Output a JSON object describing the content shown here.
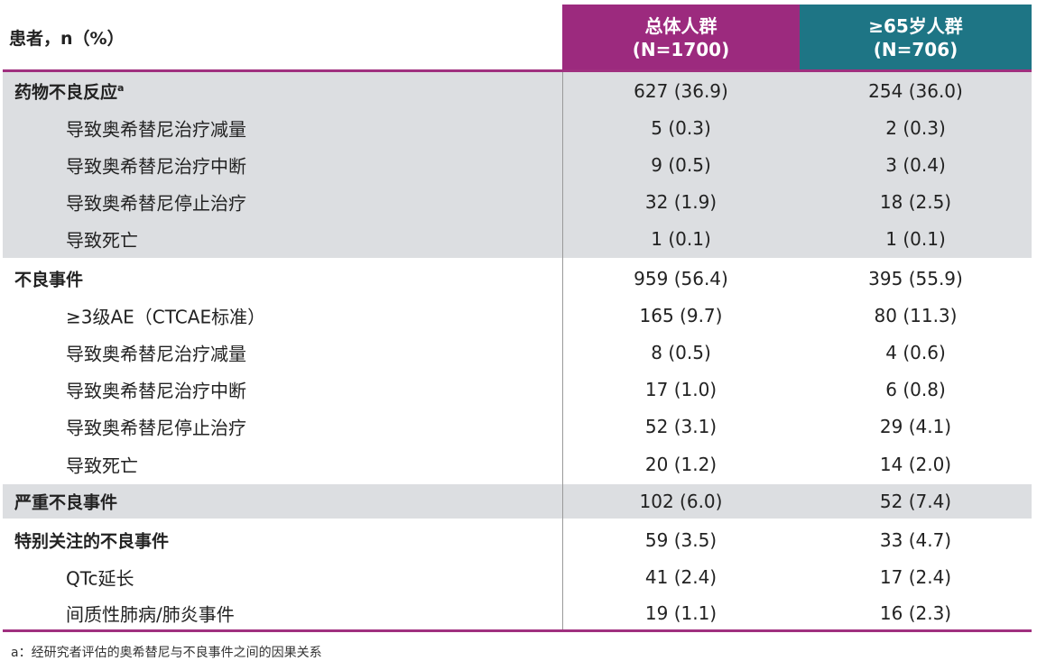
{
  "header": {
    "label": "患者，n（%）",
    "col1_title": "总体人群",
    "col1_n": "(N=1700)",
    "col2_title": "≥65岁人群",
    "col2_n": "(N=706)"
  },
  "colors": {
    "col1": "#9c2a7e",
    "col2": "#1e7585",
    "shade": "#dcdee1"
  },
  "groups": [
    {
      "shaded": true,
      "rows": [
        {
          "label": "药物不良反应",
          "sup": "a",
          "main": true,
          "v1": "627 (36.9)",
          "v2": "254 (36.0)"
        },
        {
          "label": "导致奥希替尼治疗减量",
          "v1": "5 (0.3)",
          "v2": "2 (0.3)"
        },
        {
          "label": "导致奥希替尼治疗中断",
          "v1": "9 (0.5)",
          "v2": "3 (0.4)"
        },
        {
          "label": "导致奥希替尼停止治疗",
          "v1": "32 (1.9)",
          "v2": "18 (2.5)"
        },
        {
          "label": "导致死亡",
          "v1": "1 (0.1)",
          "v2": "1 (0.1)"
        }
      ]
    },
    {
      "shaded": false,
      "rows": [
        {
          "label": "不良事件",
          "main": true,
          "v1": "959 (56.4)",
          "v2": "395 (55.9)"
        },
        {
          "label": "≥3级AE（CTCAE标准）",
          "v1": "165 (9.7)",
          "v2": "80 (11.3)"
        },
        {
          "label": "导致奥希替尼治疗减量",
          "v1": "8 (0.5)",
          "v2": "4 (0.6)"
        },
        {
          "label": "导致奥希替尼治疗中断",
          "v1": "17 (1.0)",
          "v2": "6 (0.8)"
        },
        {
          "label": "导致奥希替尼停止治疗",
          "v1": "52 (3.1)",
          "v2": "29 (4.1)"
        },
        {
          "label": "导致死亡",
          "v1": "20 (1.2)",
          "v2": "14 (2.0)"
        }
      ]
    },
    {
      "shaded": true,
      "rows": [
        {
          "label": "严重不良事件",
          "main": true,
          "v1": "102 (6.0)",
          "v2": "52 (7.4)"
        }
      ]
    },
    {
      "shaded": false,
      "rows": [
        {
          "label": "特别关注的不良事件",
          "main": true,
          "v1": "59 (3.5)",
          "v2": "33 (4.7)"
        },
        {
          "label": "QTc延长",
          "v1": "41 (2.4)",
          "v2": "17 (2.4)"
        },
        {
          "label": "间质性肺病/肺炎事件",
          "v1": "19 (1.1)",
          "v2": "16 (2.3)"
        }
      ]
    }
  ],
  "footnote": "a：经研究者评估的奥希替尼与不良事件之间的因果关系"
}
